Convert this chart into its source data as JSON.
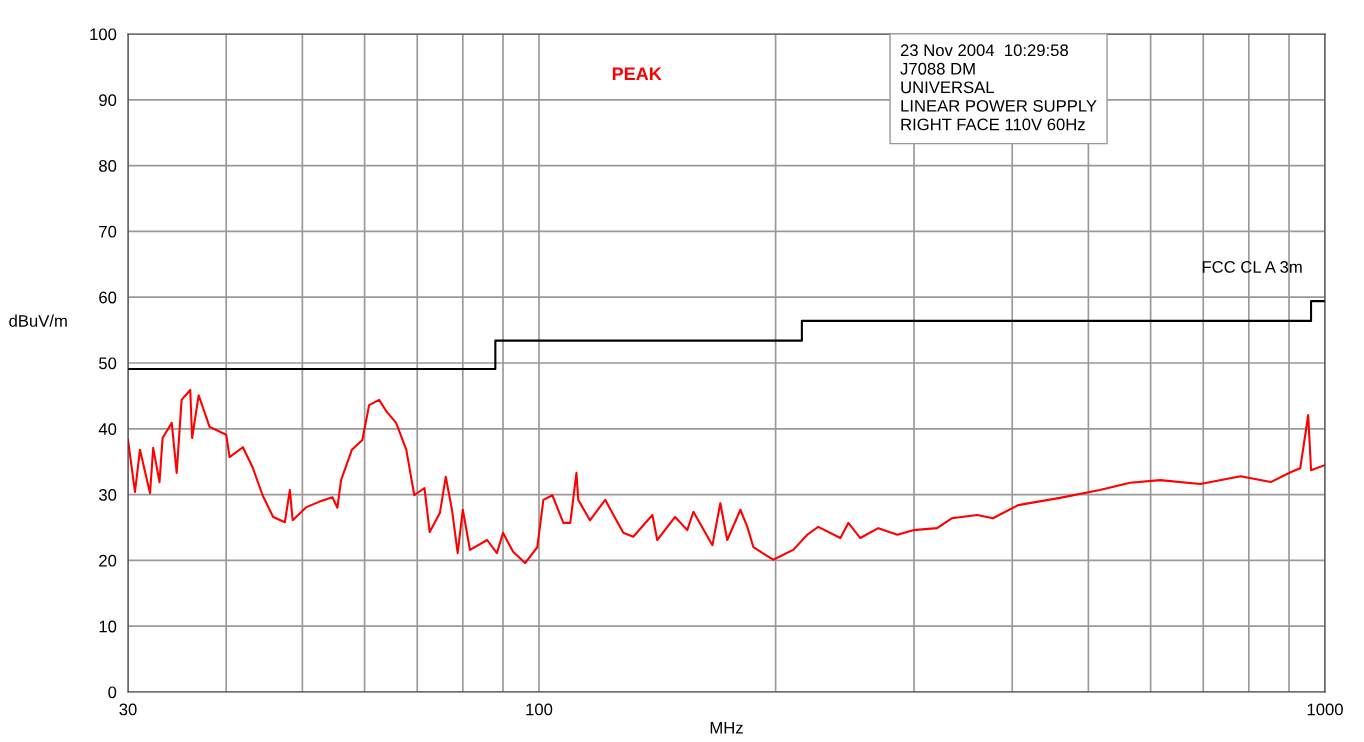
{
  "chart_data": {
    "type": "line",
    "xlabel": "MHz",
    "ylabel": "dBuV/m",
    "log": "x",
    "xlim": [
      30,
      1000
    ],
    "ylim": [
      0,
      100
    ],
    "xticks": [
      30,
      {
        "value": 40,
        "label": null
      },
      {
        "value": 50,
        "label": null
      },
      {
        "value": 60,
        "label": null
      },
      {
        "value": 70,
        "label": null
      },
      {
        "value": 80,
        "label": null
      },
      {
        "value": 90,
        "label": null
      },
      100,
      {
        "value": 200,
        "label": null
      },
      {
        "value": 300,
        "label": null
      },
      {
        "value": 400,
        "label": null
      },
      {
        "value": 500,
        "label": null
      },
      {
        "value": 600,
        "label": null
      },
      {
        "value": 700,
        "label": null
      },
      {
        "value": 800,
        "label": null
      },
      {
        "value": 900,
        "label": null
      },
      1000
    ],
    "yticks": [
      0,
      10,
      20,
      30,
      40,
      50,
      60,
      70,
      80,
      90,
      100
    ],
    "grid": true,
    "legend": false,
    "annotations": [
      "PEAK",
      "23 Nov 2004  10:29:58\nJ7088 DM\nUNIVERSAL\nLINEAR POWER SUPPLY\nRIGHT FACE 110V 60Hz"
    ],
    "series": [
      {
        "color": "#ff0000",
        "x": [
          30.0,
          30.62,
          31.07,
          32.0,
          32.3,
          32.9,
          33.2,
          34.1,
          34.6,
          35.1,
          36.0,
          36.2,
          36.9,
          38.1,
          40.0,
          40.4,
          42.0,
          43.2,
          44.5,
          45.9,
          47.5,
          48.2,
          48.6,
          50.6,
          52.5,
          54.6,
          55.4,
          56.0,
          57.8,
          59.6,
          60.8,
          62.6,
          64.0,
          65.8,
          67.8,
          69.4,
          71.5,
          72.6,
          74.8,
          76.1,
          77.5,
          78.8,
          80.0,
          81.7,
          85.9,
          88.4,
          90.0,
          92.7,
          96.0,
          99.5,
          101.3,
          104.0,
          107.4,
          109.6,
          111.6,
          112.2,
          116.1,
          121.4,
          128.0,
          131.8,
          139.4,
          141.4,
          149.0,
          154.4,
          157.2,
          166.2,
          170.1,
          173.6,
          180.4,
          184.1,
          187.4,
          198.6,
          210.6,
          219.4,
          226.6,
          241.8,
          247.5,
          256.3,
          270.2,
          285.7,
          299.4,
          321,
          335,
          361,
          378,
          407,
          460,
          517,
          565,
          617,
          694,
          781,
          853,
          904,
          930,
          952,
          960,
          1000
        ],
        "values": [
          38.3,
          30.4,
          36.8,
          30.2,
          37.1,
          31.9,
          38.6,
          40.9,
          33.3,
          44.4,
          45.9,
          38.6,
          45.1,
          40.3,
          39.1,
          35.7,
          37.2,
          34.2,
          29.9,
          26.6,
          25.8,
          30.7,
          26.1,
          28.1,
          28.9,
          29.6,
          28.0,
          32.2,
          36.8,
          38.3,
          43.6,
          44.4,
          42.6,
          40.9,
          36.8,
          29.9,
          31.0,
          24.3,
          27.2,
          32.7,
          27.7,
          21.1,
          27.7,
          21.6,
          23.1,
          21.1,
          24.2,
          21.3,
          19.6,
          22.0,
          29.2,
          29.9,
          25.7,
          25.7,
          33.3,
          29.2,
          26.1,
          29.2,
          24.2,
          23.6,
          26.9,
          23.1,
          26.6,
          24.6,
          27.4,
          22.3,
          28.7,
          23.1,
          27.7,
          25.1,
          22.0,
          20.1,
          21.6,
          23.9,
          25.1,
          23.4,
          25.7,
          23.4,
          24.9,
          23.9,
          24.6,
          24.9,
          26.4,
          26.9,
          26.4,
          28.4,
          29.5,
          30.7,
          31.8,
          32.2,
          31.6,
          32.8,
          31.9,
          33.4,
          34.0,
          42.1,
          33.7,
          34.5
        ]
      },
      {
        "name": "FCC CL A 3m",
        "color": "#000000",
        "x": [
          30,
          88,
          88,
          216,
          216,
          960,
          960,
          1000
        ],
        "values": [
          49.1,
          49.1,
          53.4,
          53.4,
          56.4,
          56.4,
          59.4,
          59.4
        ]
      }
    ]
  }
}
